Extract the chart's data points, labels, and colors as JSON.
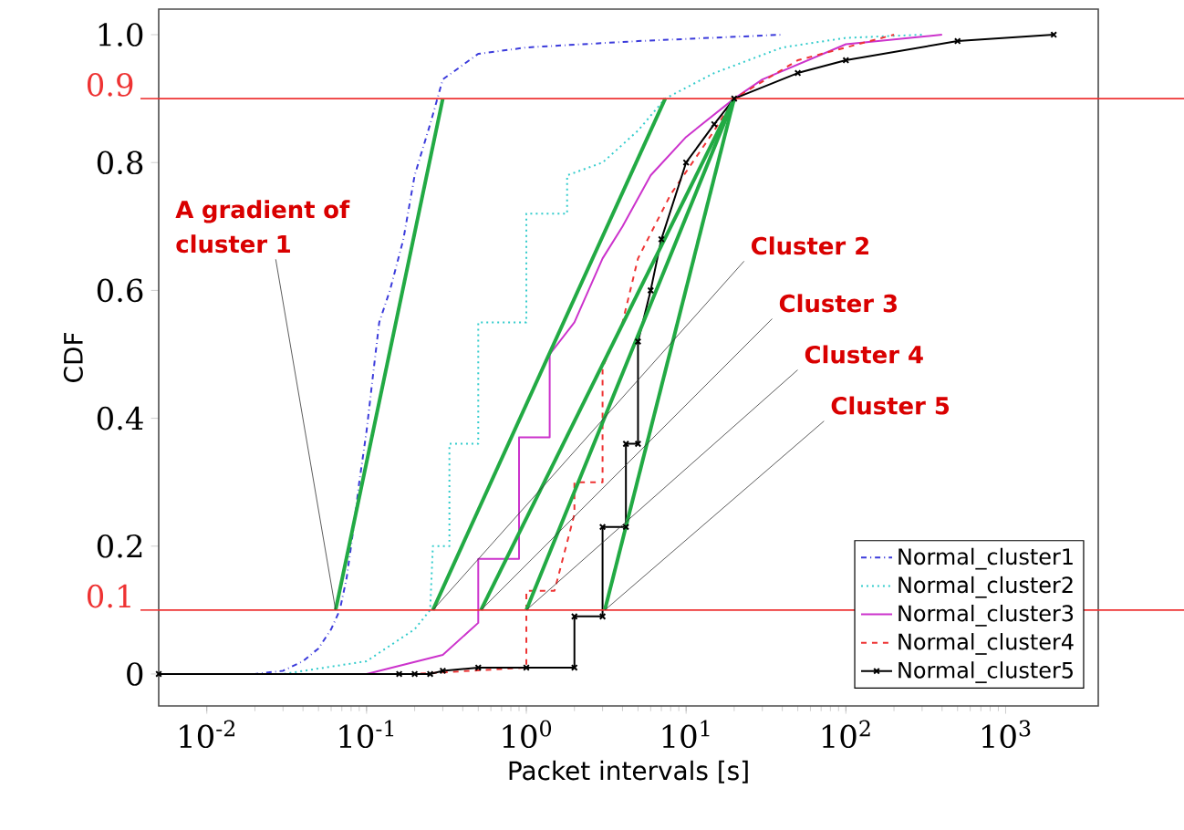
{
  "chart_data": {
    "type": "line",
    "xlabel": "Packet intervals [s]",
    "ylabel": "CDF",
    "log": "x",
    "grid": false,
    "legend": "bottom right",
    "xlim": [
      0.005,
      3800
    ],
    "ylim": [
      -0.05,
      1.04
    ],
    "xticks": [
      {
        "value": 0.01,
        "label": "10$^{-2}$"
      },
      {
        "value": 0.1,
        "label": "10$^{-1}$"
      },
      {
        "value": 1,
        "label": "10$^{0}$"
      },
      {
        "value": 10,
        "label": "10$^{1}$"
      },
      {
        "value": 100,
        "label": "10$^{2}$"
      },
      {
        "value": 1000,
        "label": "10$^{3}$"
      }
    ],
    "yticks": [
      0,
      0.2,
      0.4,
      0.6,
      0.8,
      {
        "value": 1,
        "label": "1.0"
      }
    ],
    "series": [
      {
        "name": "Normal_cluster1",
        "color": "#3b3bdb",
        "line_style": "dashdot",
        "x": [
          0.005,
          0.02,
          0.03,
          0.04,
          0.05,
          0.06,
          0.068,
          0.075,
          0.08,
          0.085,
          0.09,
          0.1,
          0.11,
          0.12,
          0.14,
          0.17,
          0.2,
          0.25,
          0.3,
          0.5,
          1,
          5,
          40
        ],
        "values": [
          0,
          0,
          0.005,
          0.02,
          0.04,
          0.07,
          0.1,
          0.15,
          0.2,
          0.25,
          0.3,
          0.38,
          0.47,
          0.55,
          0.6,
          0.68,
          0.78,
          0.86,
          0.93,
          0.97,
          0.98,
          0.99,
          1.0
        ]
      },
      {
        "name": "Normal_cluster2",
        "color": "#33cccc",
        "line_style": "dotted",
        "x": [
          0.005,
          0.03,
          0.1,
          0.2,
          0.25,
          0.26,
          0.33,
          0.33,
          0.5,
          0.5,
          1.0,
          1.0,
          1.8,
          1.8,
          3,
          5,
          7.4,
          15,
          40,
          100,
          300
        ],
        "values": [
          0,
          0,
          0.02,
          0.07,
          0.1,
          0.2,
          0.2,
          0.36,
          0.36,
          0.55,
          0.55,
          0.72,
          0.72,
          0.78,
          0.8,
          0.85,
          0.9,
          0.94,
          0.98,
          0.995,
          1.0
        ]
      },
      {
        "name": "Normal_cluster3",
        "color": "#cc33cc",
        "line_style": "solid",
        "x": [
          0.005,
          0.1,
          0.3,
          0.5,
          0.5,
          0.9,
          0.9,
          1.4,
          1.4,
          2,
          3,
          4,
          6,
          10,
          20,
          30,
          100,
          400
        ],
        "values": [
          0,
          0,
          0.03,
          0.08,
          0.18,
          0.18,
          0.37,
          0.37,
          0.5,
          0.55,
          0.65,
          0.7,
          0.78,
          0.84,
          0.9,
          0.93,
          0.985,
          1.0
        ]
      },
      {
        "name": "Normal_cluster4",
        "color": "#ee3333",
        "line_style": "dashed",
        "x": [
          0.005,
          0.2,
          1.0,
          1.0,
          1.5,
          2,
          2,
          3,
          3,
          4,
          5,
          8,
          15,
          20,
          50,
          200
        ],
        "values": [
          0,
          0,
          0.01,
          0.13,
          0.13,
          0.25,
          0.3,
          0.3,
          0.48,
          0.55,
          0.65,
          0.75,
          0.85,
          0.9,
          0.96,
          1.0
        ]
      },
      {
        "name": "Normal_cluster5",
        "color": "#000000",
        "line_style": "solid",
        "marker": "cross",
        "x": [
          0.005,
          0.16,
          0.2,
          0.25,
          0.3,
          0.5,
          1,
          2,
          2,
          3,
          3,
          4.2,
          4.2,
          5,
          5,
          6,
          7,
          10,
          15,
          20,
          50,
          100,
          500,
          2000
        ],
        "values": [
          0,
          0,
          0,
          0,
          0.005,
          0.01,
          0.01,
          0.01,
          0.09,
          0.09,
          0.23,
          0.23,
          0.36,
          0.36,
          0.52,
          0.6,
          0.68,
          0.8,
          0.86,
          0.9,
          0.94,
          0.96,
          0.99,
          1.0
        ]
      },
      {
        "color": "#22aa44",
        "line_style": "solid",
        "x": [
          0.064,
          0.3
        ],
        "values": [
          0.1,
          0.9
        ]
      },
      {
        "color": "#22aa44",
        "line_style": "solid",
        "x": [
          0.26,
          7.4
        ],
        "values": [
          0.1,
          0.9
        ]
      },
      {
        "color": "#22aa44",
        "line_style": "solid",
        "x": [
          0.52,
          20
        ],
        "values": [
          0.1,
          0.9
        ]
      },
      {
        "color": "#22aa44",
        "line_style": "solid",
        "x": [
          1.0,
          20
        ],
        "values": [
          0.1,
          0.9
        ]
      },
      {
        "color": "#22aa44",
        "line_style": "solid",
        "x": [
          3.1,
          20
        ],
        "values": [
          0.1,
          0.9
        ]
      }
    ],
    "ref_lines": [
      {
        "axis": "y",
        "value": 0.1,
        "label": "0.1",
        "color": "#ee3333"
      },
      {
        "axis": "y",
        "value": 0.9,
        "label": "0.9",
        "color": "#ee3333"
      }
    ],
    "annotations": [
      {
        "text": "A gradient of cluster 1",
        "x": 0.064,
        "y": 0.1
      },
      {
        "text": "Cluster 2",
        "x": 0.26,
        "y": 0.1
      },
      {
        "text": "Cluster 3",
        "x": 0.52,
        "y": 0.1
      },
      {
        "text": "Cluster 4",
        "x": 1.0,
        "y": 0.1
      },
      {
        "text": "Cluster 5",
        "x": 3.1,
        "y": 0.1
      }
    ]
  }
}
